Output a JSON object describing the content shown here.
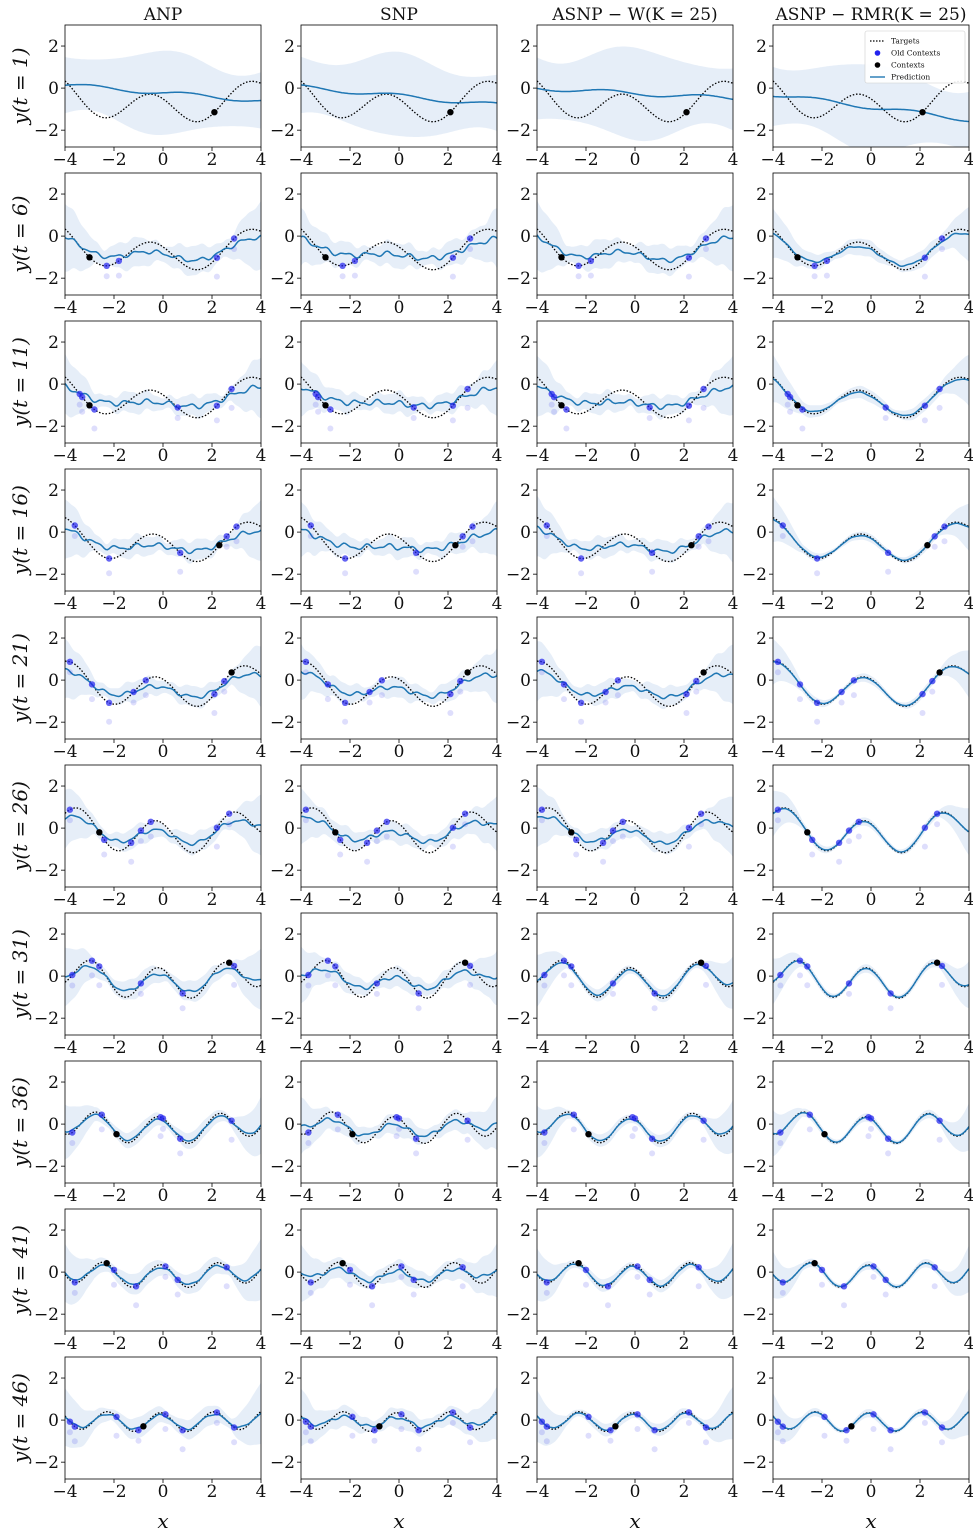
{
  "chart_data": {
    "type": "line",
    "columns": [
      "ANP",
      "SNP",
      "ASNP − W(K = 25)",
      "ASNP − RMR(K = 25)"
    ],
    "rows": [
      "y(t = 1)",
      "y(t = 6)",
      "y(t = 11)",
      "y(t = 16)",
      "y(t = 21)",
      "y(t = 26)",
      "y(t = 31)",
      "y(t = 36)",
      "y(t = 41)",
      "y(t = 46)"
    ],
    "xlabel": "x",
    "xlim": [
      -4,
      4
    ],
    "ylim": [
      -2.8,
      3.0
    ],
    "xticks": [
      "−4",
      "−2",
      "0",
      "2",
      "4"
    ],
    "yticks": [
      "2",
      "0",
      "−2"
    ],
    "legend": {
      "position": "top-right",
      "panel": "ASNP − RMR(K = 25), y(t = 1)",
      "entries": [
        "Targets",
        "Old Contexts",
        "Contexts",
        "Prediction"
      ]
    },
    "colors": {
      "target": "#000000",
      "prediction": "#1f77b4",
      "band": "#dde8f5",
      "old_context": "#2222ee",
      "context": "#000000"
    },
    "targets": [
      {
        "t": 1,
        "amp": 0.7,
        "freq": 1.6,
        "phase": 0.5,
        "offset": -1.0,
        "trend": 0.0,
        "quad": 0.05
      },
      {
        "t": 6,
        "amp": 0.7,
        "freq": 1.6,
        "phase": 0.5,
        "offset": -1.0,
        "trend": 0.0,
        "quad": 0.05
      },
      {
        "t": 11,
        "amp": 0.7,
        "freq": 1.6,
        "phase": 0.5,
        "offset": -1.0,
        "trend": 0.0,
        "quad": 0.05
      },
      {
        "t": 16,
        "amp": 0.7,
        "freq": 1.7,
        "phase": 0.4,
        "offset": -0.8,
        "trend": 0.0,
        "quad": 0.05
      },
      {
        "t": 21,
        "amp": 0.75,
        "freq": 1.8,
        "phase": 0.3,
        "offset": -0.6,
        "trend": 0.0,
        "quad": 0.05
      },
      {
        "t": 26,
        "amp": 0.8,
        "freq": 2.0,
        "phase": 0.3,
        "offset": -0.45,
        "trend": 0.0,
        "quad": 0.05
      },
      {
        "t": 31,
        "amp": 0.75,
        "freq": 2.3,
        "phase": 0.2,
        "offset": -0.35,
        "trend": 0.0,
        "quad": 0.04
      },
      {
        "t": 36,
        "amp": 0.65,
        "freq": 2.5,
        "phase": 0.2,
        "offset": -0.3,
        "trend": 0.0,
        "quad": 0.03
      },
      {
        "t": 41,
        "amp": 0.55,
        "freq": 2.7,
        "phase": 0.1,
        "offset": -0.2,
        "trend": 0.0,
        "quad": 0.02
      },
      {
        "t": 46,
        "amp": 0.45,
        "freq": 2.9,
        "phase": 0.1,
        "offset": -0.1,
        "trend": 0.0,
        "quad": 0.01
      }
    ],
    "predictions": [
      [
        {
          "start": 0.15,
          "end": -0.6,
          "band": 2.0
        },
        {
          "start": 0.05,
          "end": -0.8,
          "band": 2.0
        },
        {
          "start": 0.0,
          "end": -0.5,
          "band": 2.2
        },
        {
          "start": -0.3,
          "end": -1.5,
          "band": 2.1
        }
      ],
      [
        {
          "fidelity": 0.35,
          "band": 0.7
        },
        {
          "fidelity": 0.2,
          "band": 0.6
        },
        {
          "fidelity": 0.35,
          "band": 0.7
        },
        {
          "fidelity": 0.7,
          "band": 0.4
        }
      ],
      [
        {
          "fidelity": 0.2,
          "band": 0.5
        },
        {
          "fidelity": 0.15,
          "band": 0.5
        },
        {
          "fidelity": 0.2,
          "band": 0.5
        },
        {
          "fidelity": 0.85,
          "band": 0.3
        }
      ],
      [
        {
          "fidelity": 0.25,
          "band": 0.5
        },
        {
          "fidelity": 0.15,
          "band": 0.5
        },
        {
          "fidelity": 0.3,
          "band": 0.5
        },
        {
          "fidelity": 0.9,
          "band": 0.2
        }
      ],
      [
        {
          "fidelity": 0.4,
          "band": 0.5
        },
        {
          "fidelity": 0.35,
          "band": 0.5
        },
        {
          "fidelity": 0.4,
          "band": 0.5
        },
        {
          "fidelity": 0.95,
          "band": 0.2
        }
      ],
      [
        {
          "fidelity": 0.45,
          "band": 0.5
        },
        {
          "fidelity": 0.35,
          "band": 0.5
        },
        {
          "fidelity": 0.45,
          "band": 0.5
        },
        {
          "fidelity": 0.95,
          "band": 0.2
        }
      ],
      [
        {
          "fidelity": 0.6,
          "band": 0.5
        },
        {
          "fidelity": 0.4,
          "band": 0.5
        },
        {
          "fidelity": 0.85,
          "band": 0.3
        },
        {
          "fidelity": 0.95,
          "band": 0.2
        }
      ],
      [
        {
          "fidelity": 0.8,
          "band": 0.4
        },
        {
          "fidelity": 0.45,
          "band": 0.5
        },
        {
          "fidelity": 0.85,
          "band": 0.3
        },
        {
          "fidelity": 0.95,
          "band": 0.2
        }
      ],
      [
        {
          "fidelity": 0.75,
          "band": 0.5
        },
        {
          "fidelity": 0.45,
          "band": 0.5
        },
        {
          "fidelity": 0.85,
          "band": 0.3
        },
        {
          "fidelity": 0.95,
          "band": 0.2
        }
      ],
      [
        {
          "fidelity": 0.75,
          "band": 0.5
        },
        {
          "fidelity": 0.5,
          "band": 0.5
        },
        {
          "fidelity": 0.85,
          "band": 0.3
        },
        {
          "fidelity": 0.95,
          "band": 0.2
        }
      ]
    ],
    "contexts": [
      [
        2.1
      ],
      [
        -3.0
      ],
      [
        -3.0
      ],
      [
        2.3
      ],
      [
        2.8
      ],
      [
        -2.6
      ],
      [
        2.7
      ],
      [
        -1.9
      ],
      [
        -2.3
      ],
      [
        -0.8
      ]
    ],
    "old_contexts": [
      [],
      [
        -2.3,
        -1.8,
        2.2,
        2.9
      ],
      [
        -3.4,
        -3.3,
        -2.8,
        0.6,
        2.2,
        2.8
      ],
      [
        -3.6,
        -2.2,
        0.7,
        2.6,
        3.0
      ],
      [
        -3.8,
        -2.9,
        -2.2,
        -1.2,
        -0.7,
        2.1,
        2.5
      ],
      [
        -3.8,
        -2.4,
        -1.3,
        -0.9,
        -0.5,
        2.2,
        2.7
      ],
      [
        -3.7,
        -2.9,
        -2.6,
        -0.9,
        0.8,
        2.9
      ],
      [
        -3.7,
        -2.5,
        -0.1,
        0.0,
        0.7,
        2.8
      ],
      [
        -3.6,
        -2.0,
        -1.1,
        0.1,
        0.6,
        2.6
      ],
      [
        -3.8,
        -3.6,
        -1.9,
        -1.0,
        0.1,
        0.8,
        2.2,
        2.9
      ]
    ]
  }
}
